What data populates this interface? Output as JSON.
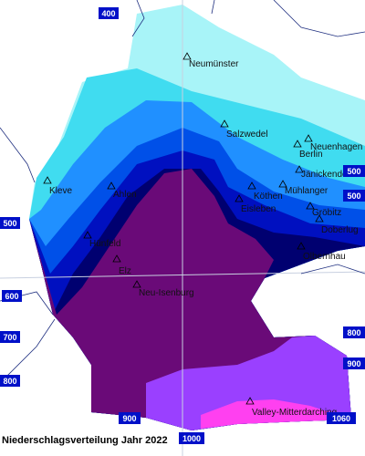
{
  "title": "Niederschlagsverteilung Jahr 2022",
  "stations": [
    {
      "name": "Neumünster"
    },
    {
      "name": "Salzwedel"
    },
    {
      "name": "Neuenhagen"
    },
    {
      "name": "Berlin"
    },
    {
      "name": "Jänickendorf"
    },
    {
      "name": "Kleve"
    },
    {
      "name": "Ahlen"
    },
    {
      "name": "Mühlanger"
    },
    {
      "name": "Köthen"
    },
    {
      "name": "Eisleben"
    },
    {
      "name": "Gröbitz"
    },
    {
      "name": "Doberlug"
    },
    {
      "name": "Olbernhau"
    },
    {
      "name": "Hünfeld"
    },
    {
      "name": "Elz"
    },
    {
      "name": "Neu-Isenburg"
    },
    {
      "name": "Valley-Mitterdarching"
    }
  ],
  "contour_labels": [
    "400",
    "500",
    "600",
    "700",
    "800",
    "900",
    "1000",
    "500",
    "500",
    "800",
    "900",
    "1060"
  ]
}
